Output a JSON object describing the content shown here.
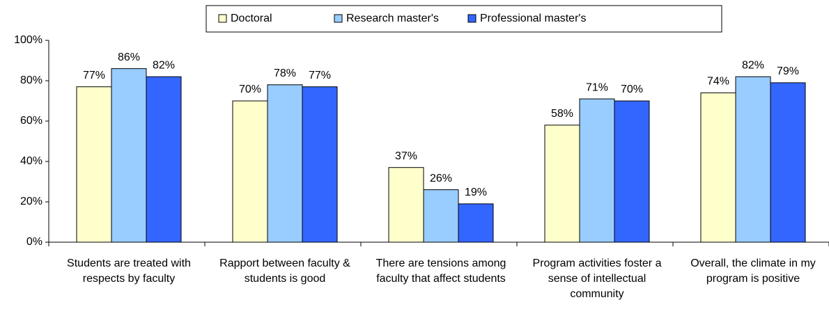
{
  "chart_data": {
    "type": "bar",
    "categories": [
      "Students are treated with respects by faculty",
      "Rapport between faculty & students is good",
      "There are tensions among faculty that affect students",
      "Program activities foster a sense of intellectual community",
      "Overall, the climate in my program is positive"
    ],
    "series": [
      {
        "name": "Doctoral",
        "color": "#ffffcc",
        "values": [
          77,
          70,
          37,
          58,
          74
        ],
        "value_labels": [
          "77%",
          "70%",
          "37%",
          "58%",
          "74%"
        ]
      },
      {
        "name": "Research master's",
        "color": "#99ccff",
        "values": [
          86,
          78,
          26,
          71,
          82
        ],
        "value_labels": [
          "86%",
          "78%",
          "26%",
          "71%",
          "82%"
        ]
      },
      {
        "name": "Professional master's",
        "color": "#3366ff",
        "values": [
          82,
          77,
          19,
          70,
          79
        ],
        "value_labels": [
          "82%",
          "77%",
          "19%",
          "70%",
          "79%"
        ]
      }
    ],
    "ylim": [
      0,
      100
    ],
    "yticks": [
      {
        "value": 0,
        "label": "0%"
      },
      {
        "value": 20,
        "label": "20%"
      },
      {
        "value": 40,
        "label": "40%"
      },
      {
        "value": 60,
        "label": "60%"
      },
      {
        "value": 80,
        "label": "80%"
      },
      {
        "value": 100,
        "label": "100%"
      }
    ],
    "legend": "top"
  }
}
